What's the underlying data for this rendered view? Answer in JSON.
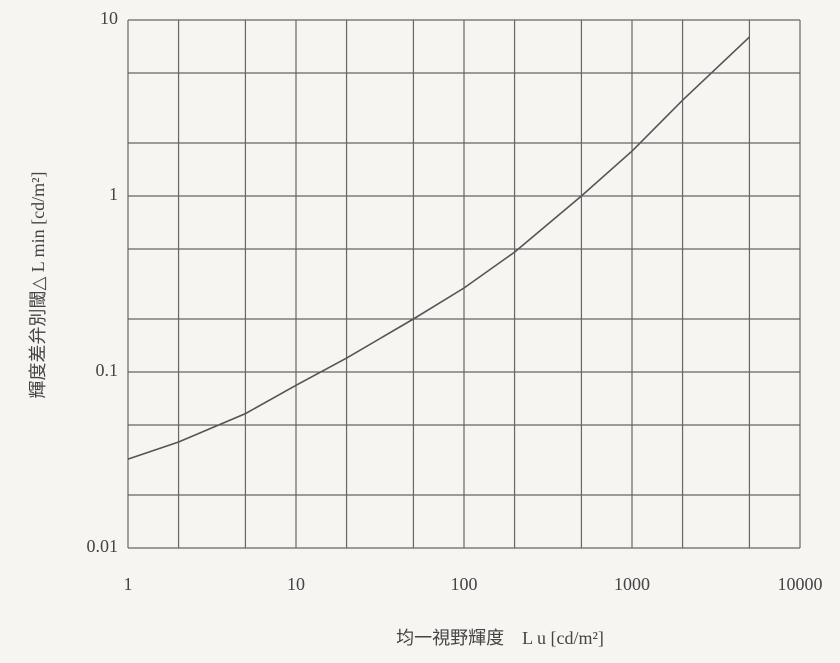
{
  "chart_data": {
    "type": "line",
    "xlabel": "均一視野輝度　L u [cd/m²]",
    "ylabel": "輝度差弁別閾△ L min [cd/m²]",
    "xlog": true,
    "ylog": true,
    "grid": true,
    "xlim": [
      1,
      10000
    ],
    "ylim": [
      0.01,
      10
    ],
    "xticks": [
      1,
      10,
      100,
      1000,
      10000
    ],
    "yticks": [
      0.01,
      0.1,
      1,
      10
    ],
    "xgrid": [
      2,
      5,
      20,
      50,
      200,
      500,
      2000,
      5000
    ],
    "ygrid": [
      0.02,
      0.05,
      0.2,
      0.5,
      2,
      5
    ],
    "x": [
      1,
      2,
      5,
      10,
      20,
      50,
      100,
      200,
      500,
      1000,
      2000,
      5000
    ],
    "series": [
      {
        "color": "#555555",
        "values": [
          0.032,
          0.04,
          0.058,
          0.084,
          0.12,
          0.2,
          0.3,
          0.48,
          1.0,
          1.8,
          3.5,
          8
        ]
      }
    ]
  }
}
